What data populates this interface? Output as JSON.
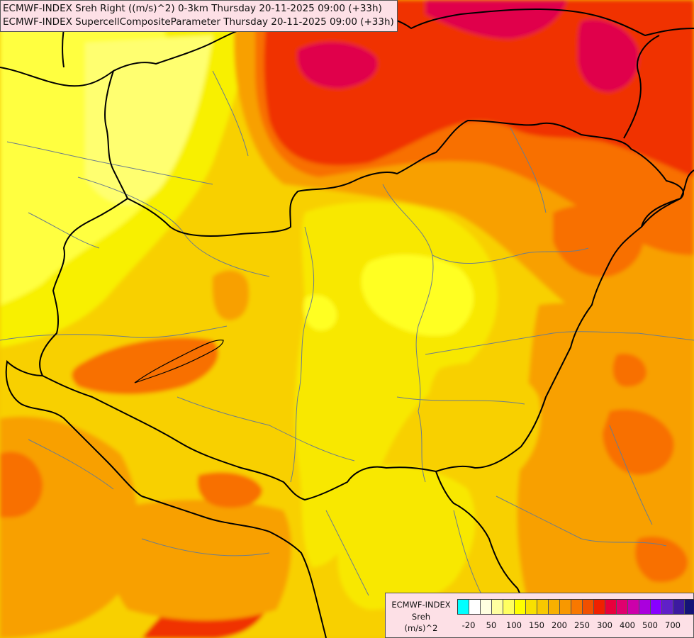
{
  "title": {
    "line1": "ECMWF-INDEX Sreh Right ((m/s)^2) 0-3km Thursday 20-11-2025 09:00 (+33h)",
    "line2": "ECMWF-INDEX SupercellCompositeParameter Thursday 20-11-2025 09:00 (+33h)"
  },
  "legend": {
    "label1": "ECMWF-INDEX",
    "label2": "Sreh",
    "label3": "(m/s)^2",
    "colors": [
      "#00ffff",
      "#ffffff",
      "#ffffe0",
      "#ffffa0",
      "#ffff60",
      "#ffff00",
      "#f8e000",
      "#f8c800",
      "#f8b000",
      "#f89800",
      "#f87800",
      "#f05000",
      "#f02000",
      "#e8003c",
      "#e0006e",
      "#cc00aa",
      "#aa00dd",
      "#8800ff",
      "#6020c8",
      "#3c1aa0",
      "#141478"
    ],
    "ticks": [
      "-20",
      "50",
      "100",
      "150",
      "200",
      "250",
      "300",
      "400",
      "500",
      "700"
    ]
  },
  "colors": {
    "yellow_light": "#ffff40",
    "yellow": "#f8f000",
    "gold": "#f8d000",
    "orange": "#f8a000",
    "dark_orange": "#f87000",
    "red": "#f03000",
    "crimson": "#e0004c",
    "border_national": "#000000",
    "border_regional": "#6b7d8c"
  }
}
